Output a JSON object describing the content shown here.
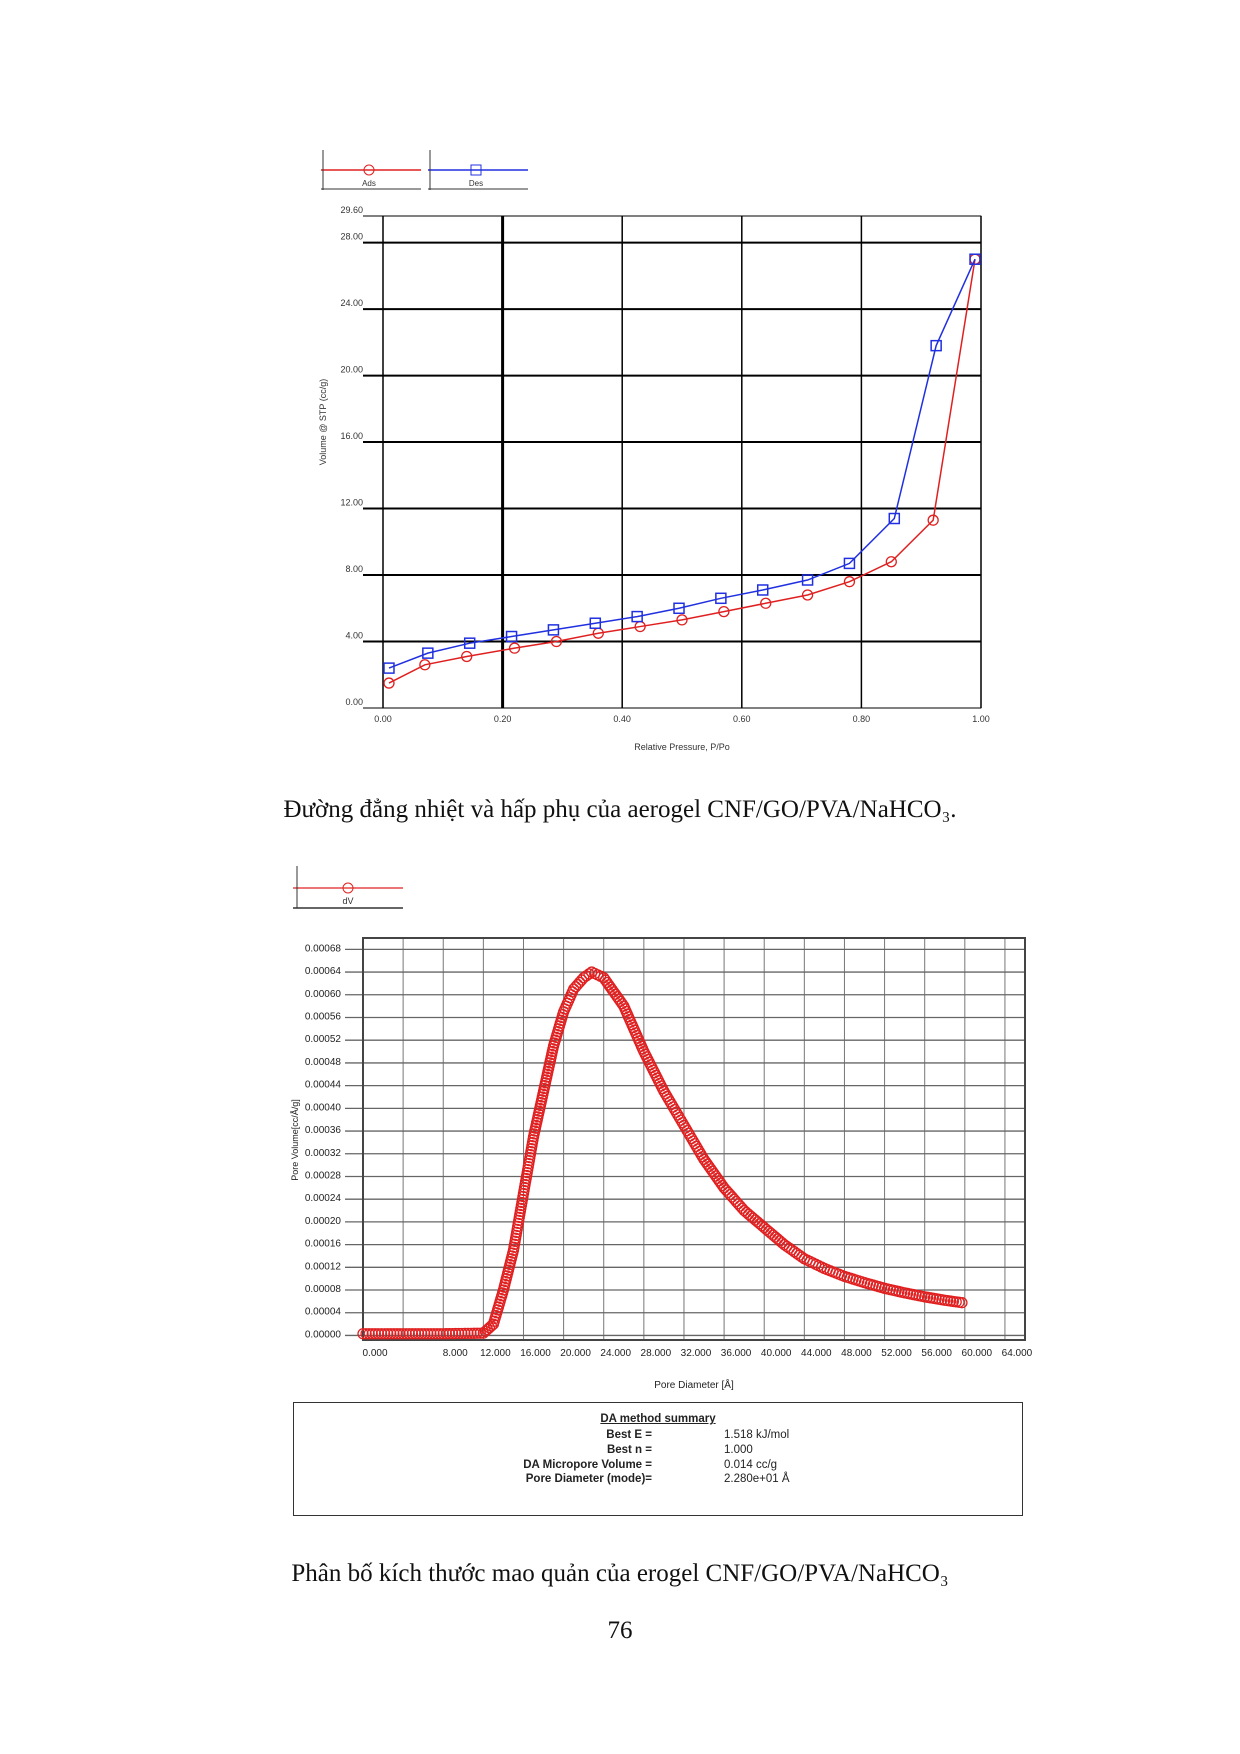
{
  "chart_data": [
    {
      "type": "line",
      "xlabel": "Relative Pressure, P/Po",
      "ylabel": "Volume @ STP (cc/g)",
      "xlim": [
        0,
        1
      ],
      "ylim": [
        0,
        29.6
      ],
      "xticks": [
        "0.00",
        "0.20",
        "0.40",
        "0.60",
        "0.80",
        "1.00"
      ],
      "yticks": [
        "0.00",
        "4.00",
        "8.00",
        "12.00",
        "16.00",
        "20.00",
        "24.00",
        "28.00",
        "29.60"
      ],
      "grid": true,
      "legend_placement": "top-left",
      "series": [
        {
          "name": "Ads",
          "color": "#e02020",
          "marker": "circle",
          "x": [
            0.01,
            0.07,
            0.14,
            0.22,
            0.29,
            0.36,
            0.43,
            0.5,
            0.57,
            0.64,
            0.71,
            0.78,
            0.85,
            0.92,
            0.99
          ],
          "y": [
            1.5,
            2.6,
            3.1,
            3.6,
            4.0,
            4.5,
            4.9,
            5.3,
            5.8,
            6.3,
            6.8,
            7.6,
            8.8,
            11.3,
            27.0
          ]
        },
        {
          "name": "Des",
          "color": "#2030e0",
          "marker": "square",
          "x": [
            0.01,
            0.075,
            0.145,
            0.215,
            0.285,
            0.355,
            0.425,
            0.495,
            0.565,
            0.635,
            0.71,
            0.78,
            0.855,
            0.925,
            0.99
          ],
          "y": [
            2.4,
            3.3,
            3.9,
            4.3,
            4.7,
            5.1,
            5.5,
            6.0,
            6.6,
            7.1,
            7.7,
            8.7,
            11.4,
            21.8,
            27.0
          ]
        }
      ]
    },
    {
      "type": "scatter",
      "xlabel": "Pore Diameter [Å]",
      "ylabel": "Pore Volume[cc/Å/g]",
      "xlim": [
        0,
        66
      ],
      "ylim": [
        -8e-06,
        0.0007
      ],
      "xticks": [
        "0.000",
        "8.000",
        "12.000",
        "16.000",
        "20.000",
        "24.000",
        "28.000",
        "32.000",
        "36.000",
        "40.000",
        "44.000",
        "48.000",
        "52.000",
        "56.000",
        "60.000",
        "64.000"
      ],
      "yticks": [
        "0.00000",
        "0.00004",
        "0.00008",
        "0.00012",
        "0.00016",
        "0.00020",
        "0.00024",
        "0.00028",
        "0.00032",
        "0.00036",
        "0.00040",
        "0.00044",
        "0.00048",
        "0.00052",
        "0.00056",
        "0.00060",
        "0.00064",
        "0.00068"
      ],
      "grid": true,
      "legend_placement": "top-left",
      "series": [
        {
          "name": "dV",
          "color": "#e02020",
          "marker": "circle",
          "x": [
            0,
            4,
            8,
            12,
            13,
            14,
            15,
            16,
            17,
            18,
            19,
            20,
            21,
            22,
            22.8,
            24,
            26,
            28,
            30,
            32,
            34,
            36,
            38,
            40,
            42,
            44,
            46,
            48,
            50,
            52,
            54,
            56,
            58,
            60
          ],
          "y": [
            3e-06,
            3e-06,
            3e-06,
            4e-06,
            2e-05,
            8e-05,
            0.00015,
            0.00025,
            0.00035,
            0.00043,
            0.00051,
            0.00057,
            0.00061,
            0.00063,
            0.00064,
            0.00063,
            0.00058,
            0.0005,
            0.00043,
            0.00037,
            0.00031,
            0.00026,
            0.00022,
            0.00019,
            0.00016,
            0.000135,
            0.000118,
            0.000104,
            9.3e-05,
            8.3e-05,
            7.5e-05,
            6.8e-05,
            6.2e-05,
            5.7e-05
          ]
        }
      ]
    }
  ],
  "summary": {
    "title": "DA method summary",
    "rows": [
      {
        "k": "Best E =",
        "v": "1.518 kJ/mol"
      },
      {
        "k": "Best n =",
        "v": "1.000"
      },
      {
        "k": "DA Micropore Volume =",
        "v": "0.014 cc/g"
      },
      {
        "k": "Pore Diameter (mode)=",
        "v": "2.280e+01 Å"
      }
    ]
  },
  "caption1": "Đường đẳng nhiệt và hấp phụ của aerogel CNF/GO/PVA/NaHCO₃.",
  "caption2": "Phân bố kích thước mao quản của erogel CNF/GO/PVA/NaHCO₃",
  "page_number": "76"
}
